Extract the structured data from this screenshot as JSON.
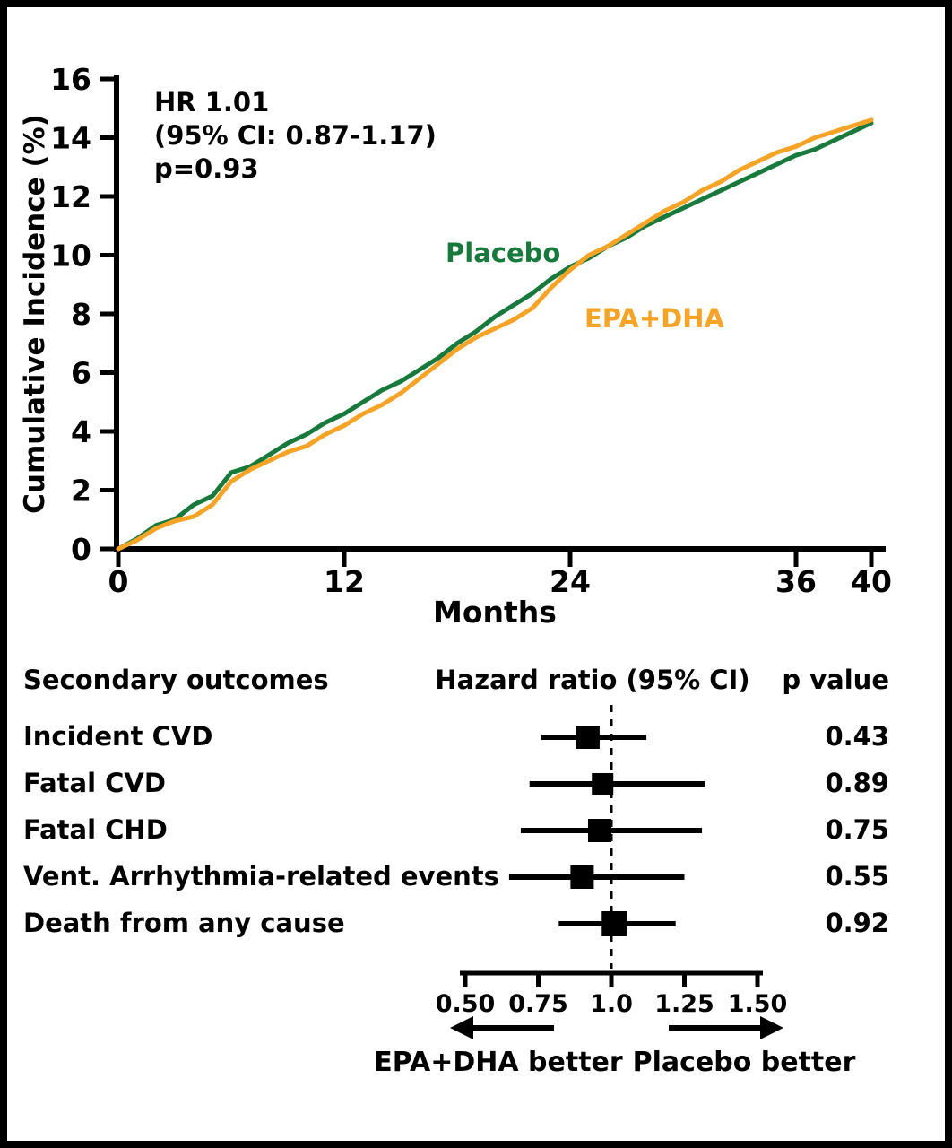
{
  "chart_data": [
    {
      "type": "line",
      "subtype": "kaplan-meier-cumulative-incidence",
      "title": "",
      "xlabel": "Months",
      "ylabel": "Cumulative Incidence (%)",
      "xlim": [
        0,
        40
      ],
      "ylim": [
        0,
        16
      ],
      "xticks": [
        0,
        12,
        24,
        36,
        40
      ],
      "yticks": [
        0,
        2,
        4,
        6,
        8,
        10,
        12,
        14,
        16
      ],
      "grid": false,
      "annotation": [
        "HR 1.01",
        "(95% CI: 0.87-1.17)",
        "p=0.93"
      ],
      "series": [
        {
          "name": "Placebo",
          "color": "#17793B",
          "x": [
            0,
            1,
            2,
            3,
            4,
            5,
            6,
            7,
            8,
            9,
            10,
            11,
            12,
            13,
            14,
            15,
            16,
            17,
            18,
            19,
            20,
            21,
            22,
            23,
            24,
            25,
            26,
            27,
            28,
            29,
            30,
            31,
            32,
            33,
            34,
            35,
            36,
            37,
            38,
            39,
            40
          ],
          "y": [
            0,
            0.35,
            0.8,
            1.0,
            1.5,
            1.8,
            2.6,
            2.8,
            3.2,
            3.6,
            3.9,
            4.3,
            4.6,
            5.0,
            5.4,
            5.7,
            6.1,
            6.5,
            7.0,
            7.4,
            7.9,
            8.3,
            8.7,
            9.2,
            9.6,
            9.9,
            10.3,
            10.6,
            11.0,
            11.3,
            11.6,
            11.9,
            12.2,
            12.5,
            12.8,
            13.1,
            13.4,
            13.6,
            13.9,
            14.2,
            14.5
          ]
        },
        {
          "name": "EPA+DHA",
          "color": "#F7A426",
          "x": [
            0,
            1,
            2,
            3,
            4,
            5,
            6,
            7,
            8,
            9,
            10,
            11,
            12,
            13,
            14,
            15,
            16,
            17,
            18,
            19,
            20,
            21,
            22,
            23,
            24,
            25,
            26,
            27,
            28,
            29,
            30,
            31,
            32,
            33,
            34,
            35,
            36,
            37,
            38,
            39,
            40
          ],
          "y": [
            0,
            0.3,
            0.7,
            0.95,
            1.1,
            1.5,
            2.3,
            2.7,
            3.0,
            3.3,
            3.5,
            3.9,
            4.2,
            4.6,
            4.9,
            5.3,
            5.8,
            6.3,
            6.8,
            7.2,
            7.5,
            7.8,
            8.2,
            8.9,
            9.5,
            10.0,
            10.3,
            10.7,
            11.1,
            11.5,
            11.8,
            12.2,
            12.5,
            12.9,
            13.2,
            13.5,
            13.7,
            14.0,
            14.2,
            14.4,
            14.6
          ]
        }
      ]
    },
    {
      "type": "forest",
      "col_headers": {
        "outcome": "Secondary outcomes",
        "hr": "Hazard ratio (95% CI)",
        "p": "p value"
      },
      "rows": [
        {
          "label": "Incident CVD",
          "hr": 0.92,
          "ci": [
            0.76,
            1.12
          ],
          "p": "0.43",
          "marker_size": 26
        },
        {
          "label": "Fatal CVD",
          "hr": 0.97,
          "ci": [
            0.72,
            1.32
          ],
          "p": "0.89",
          "marker_size": 24
        },
        {
          "label": "Fatal CHD",
          "hr": 0.96,
          "ci": [
            0.69,
            1.31
          ],
          "p": "0.75",
          "marker_size": 26
        },
        {
          "label": "Vent. Arrhythmia-related events",
          "hr": 0.9,
          "ci": [
            0.65,
            1.25
          ],
          "p": "0.55",
          "marker_size": 26
        },
        {
          "label": "Death from any cause",
          "hr": 1.01,
          "ci": [
            0.82,
            1.22
          ],
          "p": "0.92",
          "marker_size": 28
        }
      ],
      "axis_ticks": [
        "0.50",
        "0.75",
        "1.0",
        "1.25",
        "1.50"
      ],
      "axis_tick_values": [
        0.5,
        0.75,
        1.0,
        1.25,
        1.5
      ],
      "reference_line": 1.0,
      "left_arrow_label": "EPA+DHA better",
      "right_arrow_label": "Placebo better"
    }
  ],
  "colors": {
    "placebo_green": "#17793B",
    "epa_dha_orange": "#F7A426",
    "ink": "#000000",
    "background": "#FFFFFF"
  }
}
